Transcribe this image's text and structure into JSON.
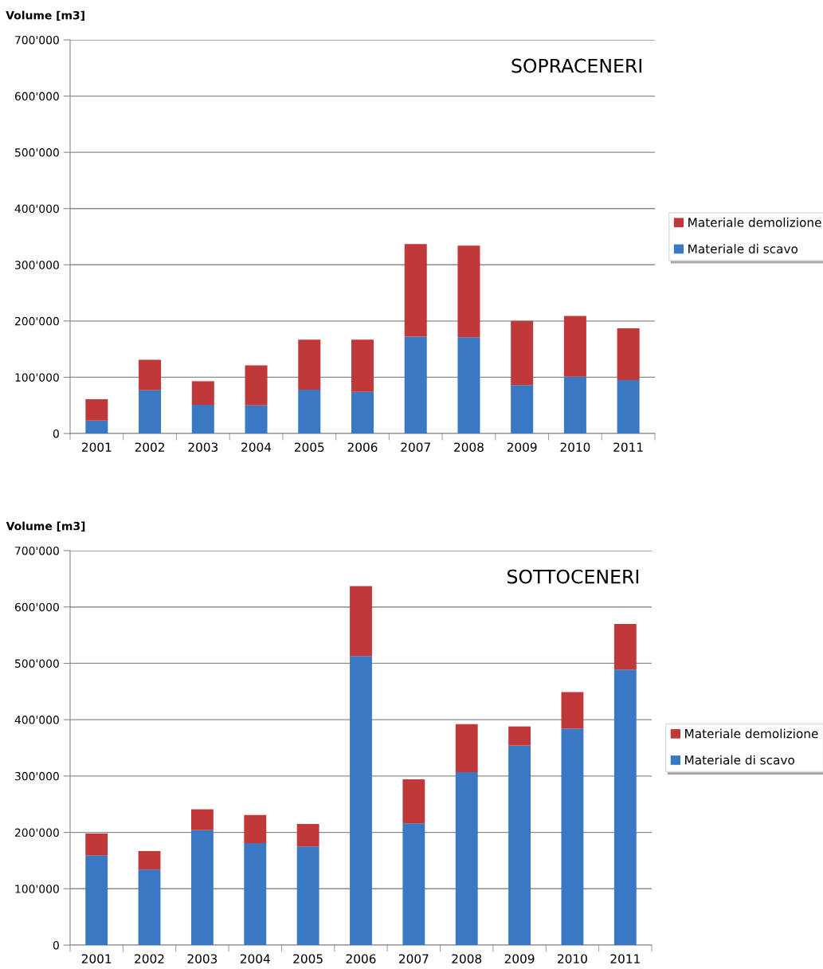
{
  "chart_data": [
    {
      "type": "bar",
      "title": "SOPRACENERI",
      "ylabel": "Volume [m3]",
      "stacked": true,
      "legend": "right",
      "grid": "y",
      "categories": [
        "2001",
        "2002",
        "2003",
        "2004",
        "2005",
        "2006",
        "2007",
        "2008",
        "2009",
        "2010",
        "2011"
      ],
      "ylim": [
        0,
        700000
      ],
      "yticks": [
        {
          "value": 0,
          "label": "0"
        },
        {
          "value": 100000,
          "label": "100'000"
        },
        {
          "value": 200000,
          "label": "200'000"
        },
        {
          "value": 300000,
          "label": "300'000"
        },
        {
          "value": 400000,
          "label": "400'000"
        },
        {
          "value": 500000,
          "label": "500'000"
        },
        {
          "value": 600000,
          "label": "600'000"
        },
        {
          "value": 700000,
          "label": "700'000"
        }
      ],
      "series": [
        {
          "name": "Materiale di scavo",
          "color": "#3a78c4",
          "values": [
            23000,
            77000,
            51000,
            50000,
            78000,
            74000,
            172000,
            171000,
            86000,
            101000,
            95000
          ]
        },
        {
          "name": "Materiale demolizione",
          "color": "#c0393a",
          "values": [
            38000,
            54000,
            42000,
            71000,
            89000,
            93000,
            165000,
            163000,
            114000,
            108000,
            92000
          ]
        }
      ]
    },
    {
      "type": "bar",
      "title": "SOTTOCENERI",
      "ylabel": "Volume [m3]",
      "stacked": true,
      "legend": "right",
      "grid": "y",
      "categories": [
        "2001",
        "2002",
        "2003",
        "2004",
        "2005",
        "2006",
        "2007",
        "2008",
        "2009",
        "2010",
        "2011"
      ],
      "ylim": [
        0,
        700000
      ],
      "yticks": [
        {
          "value": 0,
          "label": "0"
        },
        {
          "value": 100000,
          "label": "100'000"
        },
        {
          "value": 200000,
          "label": "200'000"
        },
        {
          "value": 300000,
          "label": "300'000"
        },
        {
          "value": 400000,
          "label": "400'000"
        },
        {
          "value": 500000,
          "label": "500'000"
        },
        {
          "value": 600000,
          "label": "600'000"
        },
        {
          "value": 700000,
          "label": "700'000"
        }
      ],
      "series": [
        {
          "name": "Materiale di scavo",
          "color": "#3a78c4",
          "values": [
            159000,
            134000,
            204000,
            181000,
            175000,
            513000,
            216000,
            307000,
            354000,
            384000,
            489000
          ]
        },
        {
          "name": "Materiale demolizione",
          "color": "#c0393a",
          "values": [
            39000,
            33000,
            37000,
            50000,
            40000,
            124000,
            78000,
            85000,
            34000,
            65000,
            81000
          ]
        }
      ]
    }
  ]
}
